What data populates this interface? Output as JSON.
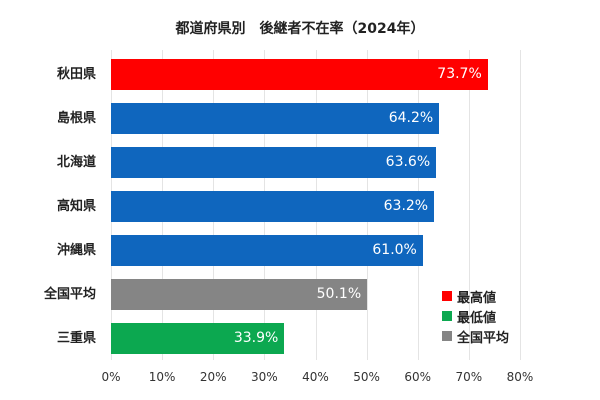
{
  "chart_data": {
    "type": "bar",
    "orientation": "horizontal",
    "title": "都道府県別　後継者不在率（2024年）",
    "categories": [
      "秋田県",
      "島根県",
      "北海道",
      "高知県",
      "沖縄県",
      "全国平均",
      "三重県"
    ],
    "values": [
      73.7,
      64.2,
      63.6,
      63.2,
      61.0,
      50.1,
      33.9
    ],
    "value_labels": [
      "73.7%",
      "64.2%",
      "63.6%",
      "63.2%",
      "61.0%",
      "50.1%",
      "33.9%"
    ],
    "colors": [
      "#ff0000",
      "#0f66be",
      "#0f66be",
      "#0f66be",
      "#0f66be",
      "#858585",
      "#0ca850"
    ],
    "xlabel": "",
    "ylabel": "",
    "xlim": [
      0,
      80
    ],
    "xticks": [
      "0%",
      "10%",
      "20%",
      "30%",
      "40%",
      "50%",
      "60%",
      "70%",
      "80%"
    ],
    "grid": true,
    "legend_position": "lower right",
    "legend": [
      {
        "label": "最高値",
        "color": "#ff0000"
      },
      {
        "label": "最低値",
        "color": "#0ca850"
      },
      {
        "label": "全国平均",
        "color": "#858585"
      }
    ]
  }
}
